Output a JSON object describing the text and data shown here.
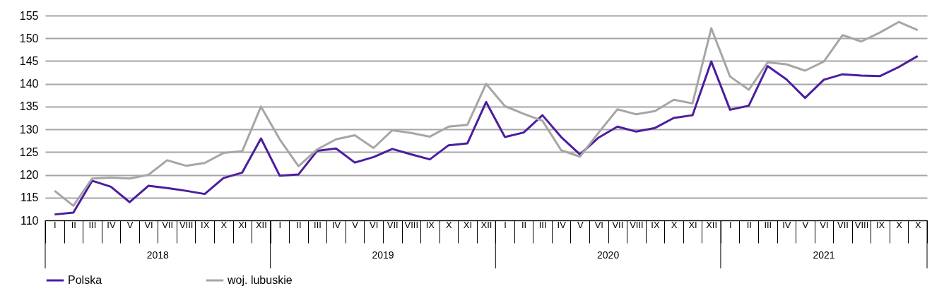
{
  "chart_data": {
    "type": "line",
    "categories": [
      "I",
      "II",
      "III",
      "IV",
      "V",
      "VI",
      "VII",
      "VIII",
      "IX",
      "X",
      "XI",
      "XII",
      "I",
      "II",
      "III",
      "IV",
      "V",
      "VI",
      "VII",
      "VIII",
      "IX",
      "X",
      "XI",
      "XII",
      "I",
      "II",
      "III",
      "IV",
      "V",
      "VI",
      "VII",
      "VIII",
      "IX",
      "X",
      "XI",
      "XII",
      "I",
      "II",
      "III",
      "IV",
      "V",
      "VI",
      "VII",
      "VIII",
      "IX",
      "X",
      "X"
    ],
    "series": [
      {
        "name": "Polska",
        "color": "#4b1e9e",
        "values": [
          111.3,
          111.7,
          118.7,
          117.4,
          114.0,
          117.6,
          117.1,
          116.5,
          115.8,
          119.3,
          120.5,
          128.0,
          119.8,
          120.1,
          125.3,
          125.8,
          122.7,
          123.9,
          125.7,
          124.5,
          123.4,
          126.5,
          126.9,
          136.0,
          128.3,
          129.3,
          133.1,
          128.3,
          124.5,
          128.2,
          130.6,
          129.5,
          130.3,
          132.5,
          133.1,
          144.9,
          134.3,
          135.2,
          143.9,
          141.0,
          136.9,
          140.9,
          142.1,
          141.8,
          141.7,
          143.7,
          146.1
        ]
      },
      {
        "name": "woj. lubuskie",
        "color": "#a6a6a6",
        "values": [
          116.5,
          113.2,
          119.2,
          119.4,
          119.2,
          120.0,
          123.2,
          122.0,
          122.6,
          124.8,
          125.2,
          135.0,
          127.8,
          121.9,
          125.6,
          127.8,
          128.7,
          125.9,
          129.8,
          129.2,
          128.4,
          130.6,
          131.0,
          140.0,
          135.1,
          133.4,
          131.9,
          125.4,
          124.0,
          129.3,
          134.4,
          133.3,
          134.0,
          136.5,
          135.7,
          152.2,
          141.6,
          138.7,
          144.7,
          144.3,
          142.9,
          144.9,
          150.7,
          149.3,
          151.3,
          153.6,
          151.8
        ]
      }
    ],
    "annotations": [
      "2018",
      "2019",
      "2020",
      "2021"
    ],
    "ylim": [
      110,
      155
    ],
    "yticks": [
      110,
      115,
      120,
      125,
      130,
      135,
      140,
      145,
      150,
      155
    ],
    "grid": "y",
    "legend": "bottom",
    "marker": "none",
    "line_style": "solid"
  }
}
